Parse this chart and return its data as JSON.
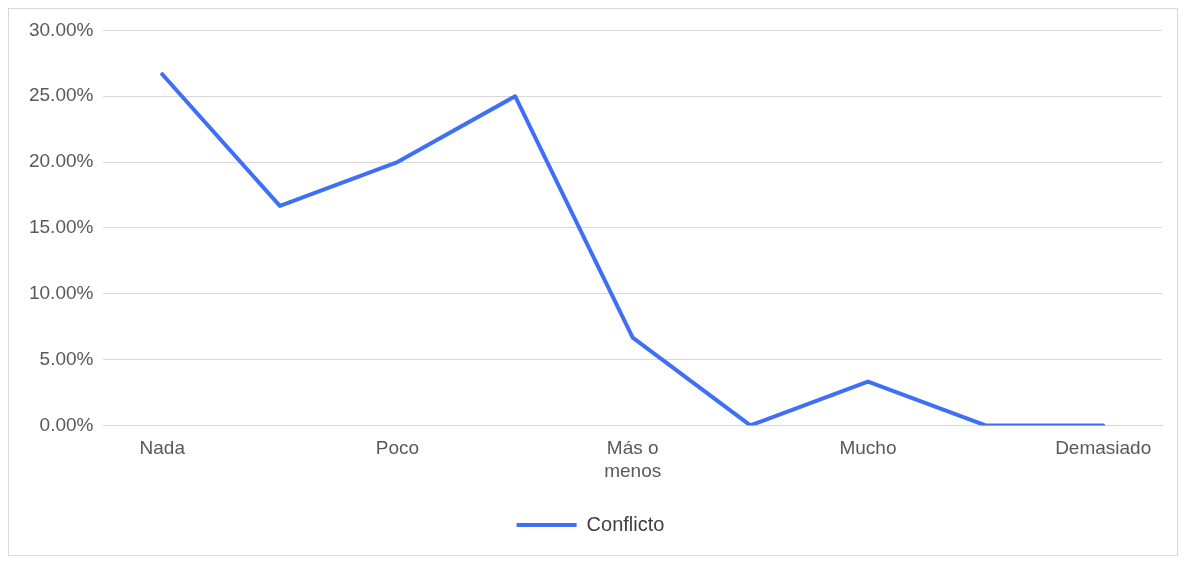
{
  "chart_data": {
    "type": "line",
    "categories": [
      "Nada",
      null,
      "Poco",
      null,
      "Más o menos",
      null,
      "Mucho",
      null,
      "Demasiado"
    ],
    "series": [
      {
        "name": "Conflicto",
        "color": "#3f6ff5",
        "values": [
          26.67,
          16.67,
          20,
          25,
          6.67,
          0,
          3.33,
          0,
          0
        ]
      }
    ],
    "ylim": [
      0,
      30
    ],
    "yticks": [
      {
        "value": 0,
        "label": "0.00%"
      },
      {
        "value": 5,
        "label": "5.00%"
      },
      {
        "value": 10,
        "label": "10.00%"
      },
      {
        "value": 15,
        "label": "15.00%"
      },
      {
        "value": 20,
        "label": "20.00%"
      },
      {
        "value": 25,
        "label": "25.00%"
      },
      {
        "value": 30,
        "label": "30.00%"
      }
    ],
    "grid": "y",
    "legend": "bottom",
    "marker": "none",
    "line_style": "solid"
  }
}
